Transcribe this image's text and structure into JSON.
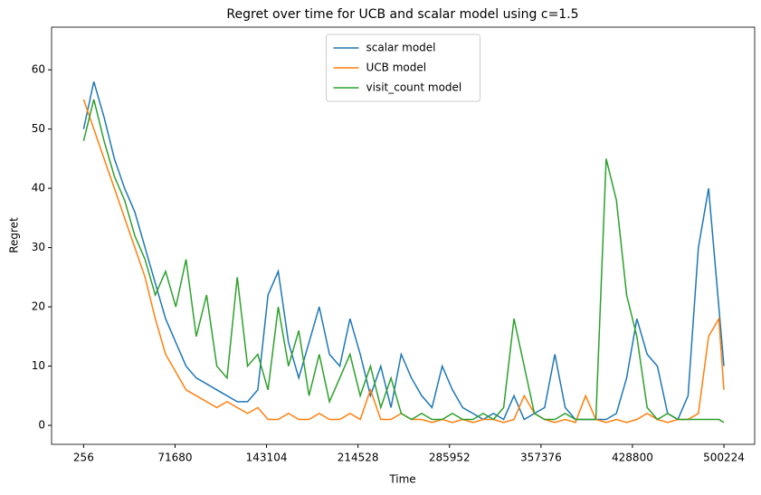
{
  "chart_data": {
    "type": "line",
    "title": "Regret over time for UCB and scalar model using c=1.5",
    "xlabel": "Time",
    "ylabel": "Regret",
    "x": [
      256,
      8256,
      16256,
      24256,
      32256,
      40256,
      48256,
      56256,
      64256,
      72256,
      80256,
      88256,
      96256,
      104256,
      112256,
      120256,
      128256,
      136256,
      144256,
      152256,
      160256,
      168256,
      176256,
      184256,
      192256,
      200256,
      208256,
      216256,
      224256,
      232256,
      240256,
      248256,
      256256,
      264256,
      272256,
      280256,
      288256,
      296256,
      304256,
      312256,
      320256,
      328256,
      336256,
      344256,
      352256,
      360256,
      368256,
      376256,
      384256,
      392256,
      400256,
      408256,
      416256,
      424256,
      432256,
      440256,
      448256,
      456256,
      464256,
      472256,
      480256,
      488256,
      496256,
      500224
    ],
    "series": [
      {
        "name": "scalar model",
        "color": "#1f77b4",
        "values": [
          50,
          58,
          52,
          45,
          40,
          36,
          30,
          24,
          18,
          14,
          10,
          8,
          7,
          6,
          5,
          4,
          4,
          6,
          22,
          26,
          14,
          8,
          14,
          20,
          12,
          10,
          18,
          12,
          5,
          10,
          3,
          12,
          8,
          5,
          3,
          10,
          6,
          3,
          2,
          1,
          2,
          1,
          5,
          1,
          2,
          3,
          12,
          3,
          1,
          1,
          1,
          1,
          2,
          8,
          18,
          12,
          10,
          2,
          1,
          5,
          30,
          40,
          20,
          10
        ]
      },
      {
        "name": "UCB model",
        "color": "#ff7f0e",
        "values": [
          55,
          50,
          45,
          40,
          35,
          30,
          25,
          18,
          12,
          9,
          6,
          5,
          4,
          3,
          4,
          3,
          2,
          3,
          1,
          1,
          2,
          1,
          1,
          2,
          1,
          1,
          2,
          1,
          6,
          1,
          1,
          2,
          1,
          1,
          0.5,
          1,
          0.5,
          1,
          0.5,
          1,
          1,
          0.5,
          1,
          5,
          2,
          1,
          0.5,
          1,
          0.5,
          5,
          1,
          0.5,
          1,
          0.5,
          1,
          2,
          1,
          0.5,
          1,
          1,
          2,
          15,
          18,
          6
        ]
      },
      {
        "name": "visit_count model",
        "color": "#2ca02c",
        "values": [
          48,
          55,
          48,
          42,
          38,
          32,
          28,
          22,
          26,
          20,
          28,
          15,
          22,
          10,
          8,
          25,
          10,
          12,
          6,
          20,
          10,
          16,
          5,
          12,
          4,
          8,
          12,
          5,
          10,
          3,
          8,
          2,
          1,
          2,
          1,
          1,
          2,
          1,
          1,
          2,
          1,
          3,
          18,
          10,
          2,
          1,
          1,
          2,
          1,
          1,
          1,
          45,
          38,
          22,
          15,
          3,
          1,
          2,
          1,
          1,
          1,
          1,
          1,
          0.5
        ]
      }
    ],
    "xlim": [
      -24742,
      524222
    ],
    "ylim": [
      -3.2,
      67.2
    ],
    "xticks": [
      256,
      71680,
      143104,
      214528,
      285952,
      357376,
      428800,
      500224
    ],
    "yticks": [
      0,
      10,
      20,
      30,
      40,
      50,
      60
    ],
    "legend": "upper center"
  }
}
